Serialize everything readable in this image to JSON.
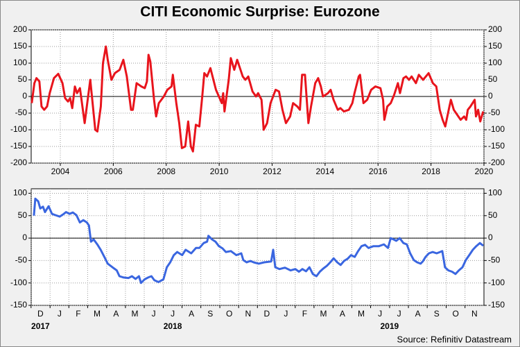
{
  "chart_data": [
    {
      "type": "line",
      "title": "CITI Economic Surprise: Eurozone",
      "xlim": [
        2002.9,
        2020
      ],
      "xticks": [
        2004,
        2006,
        2008,
        2010,
        2012,
        2014,
        2016,
        2018,
        2020
      ],
      "ylim": [
        -200,
        200
      ],
      "yticks": [
        -200,
        -150,
        -100,
        -50,
        0,
        50,
        100,
        150,
        200
      ],
      "grid": true,
      "x": [
        2002.92,
        2003.02,
        2003.1,
        2003.21,
        2003.29,
        2003.39,
        2003.5,
        2003.6,
        2003.76,
        2003.92,
        2004.08,
        2004.18,
        2004.29,
        2004.37,
        2004.45,
        2004.55,
        2004.63,
        2004.74,
        2004.92,
        2005.13,
        2005.32,
        2005.4,
        2005.53,
        2005.61,
        2005.72,
        2005.79,
        2005.93,
        2006.06,
        2006.24,
        2006.38,
        2006.51,
        2006.67,
        2006.74,
        2006.88,
        2007.06,
        2007.19,
        2007.27,
        2007.33,
        2007.4,
        2007.54,
        2007.62,
        2007.72,
        2007.91,
        2008.04,
        2008.2,
        2008.25,
        2008.38,
        2008.49,
        2008.59,
        2008.72,
        2008.83,
        2008.93,
        2009.01,
        2009.12,
        2009.25,
        2009.36,
        2009.44,
        2009.54,
        2009.67,
        2009.88,
        2010.1,
        2010.15,
        2010.2,
        2010.36,
        2010.44,
        2010.57,
        2010.68,
        2010.89,
        2010.99,
        2011.1,
        2011.26,
        2011.39,
        2011.47,
        2011.6,
        2011.68,
        2011.81,
        2011.94,
        2012.13,
        2012.26,
        2012.39,
        2012.52,
        2012.68,
        2012.79,
        2012.95,
        2013.05,
        2013.13,
        2013.24,
        2013.37,
        2013.47,
        2013.63,
        2013.74,
        2013.84,
        2013.92,
        2014.11,
        2014.21,
        2014.32,
        2014.48,
        2014.58,
        2014.71,
        2014.9,
        2015.03,
        2015.11,
        2015.27,
        2015.32,
        2015.45,
        2015.59,
        2015.74,
        2015.9,
        2016.09,
        2016.19,
        2016.24,
        2016.35,
        2016.48,
        2016.61,
        2016.75,
        2016.83,
        2016.96,
        2017.06,
        2017.17,
        2017.27,
        2017.43,
        2017.54,
        2017.7,
        2017.91,
        2018.07,
        2018.2,
        2018.33,
        2018.44,
        2018.54,
        2018.67,
        2018.75,
        2018.86,
        2018.99,
        2019.12,
        2019.25,
        2019.33,
        2019.39,
        2019.49,
        2019.65,
        2019.7,
        2019.78,
        2019.86,
        2019.97
      ],
      "series": [
        {
          "color": "#e8141c",
          "values": [
            -20,
            40,
            55,
            45,
            -30,
            -40,
            -30,
            10,
            55,
            68,
            40,
            -5,
            -15,
            -5,
            -35,
            30,
            10,
            25,
            -80,
            50,
            -100,
            -105,
            -30,
            100,
            150,
            110,
            50,
            70,
            80,
            110,
            60,
            -40,
            -40,
            40,
            30,
            25,
            45,
            125,
            105,
            -10,
            -60,
            -20,
            0,
            20,
            30,
            65,
            -20,
            -80,
            -155,
            -150,
            -75,
            -150,
            -165,
            -85,
            -90,
            0,
            70,
            60,
            85,
            20,
            -20,
            10,
            -45,
            50,
            115,
            80,
            110,
            60,
            50,
            60,
            15,
            0,
            10,
            -10,
            -100,
            -80,
            -20,
            20,
            15,
            -40,
            -80,
            -60,
            -20,
            -30,
            -40,
            65,
            65,
            -80,
            -30,
            40,
            55,
            30,
            0,
            10,
            20,
            -10,
            -40,
            -35,
            -45,
            -40,
            -20,
            10,
            60,
            65,
            -20,
            -10,
            20,
            30,
            25,
            -10,
            -70,
            -30,
            -20,
            5,
            40,
            10,
            55,
            60,
            50,
            60,
            40,
            65,
            50,
            70,
            40,
            30,
            -40,
            -70,
            -90,
            -40,
            -10,
            -40,
            -55,
            -70,
            -60,
            -70,
            -40,
            -30,
            -10,
            -60,
            -40,
            -75,
            -45
          ]
        }
      ]
    },
    {
      "type": "line",
      "xlim": [
        2017.917,
        2019.917
      ],
      "xticks": [
        {
          "value": 2017.958,
          "label": "D"
        },
        {
          "value": 2018.042,
          "label": "J"
        },
        {
          "value": 2018.125,
          "label": "F"
        },
        {
          "value": 2018.208,
          "label": "M"
        },
        {
          "value": 2018.292,
          "label": "A"
        },
        {
          "value": 2018.375,
          "label": "M"
        },
        {
          "value": 2018.458,
          "label": "J"
        },
        {
          "value": 2018.542,
          "label": "J"
        },
        {
          "value": 2018.625,
          "label": "A"
        },
        {
          "value": 2018.708,
          "label": "S"
        },
        {
          "value": 2018.792,
          "label": "O"
        },
        {
          "value": 2018.875,
          "label": "N"
        },
        {
          "value": 2018.958,
          "label": "D"
        },
        {
          "value": 2019.042,
          "label": "J"
        },
        {
          "value": 2019.125,
          "label": "F"
        },
        {
          "value": 2019.208,
          "label": "M"
        },
        {
          "value": 2019.292,
          "label": "A"
        },
        {
          "value": 2019.375,
          "label": "M"
        },
        {
          "value": 2019.458,
          "label": "J"
        },
        {
          "value": 2019.542,
          "label": "J"
        },
        {
          "value": 2019.625,
          "label": "A"
        },
        {
          "value": 2019.708,
          "label": "S"
        },
        {
          "value": 2019.792,
          "label": "O"
        },
        {
          "value": 2019.875,
          "label": "N"
        }
      ],
      "year_ticks": [
        {
          "value": 2017.958,
          "label": "2017"
        },
        {
          "value": 2018.542,
          "label": "2018"
        },
        {
          "value": 2019.5,
          "label": "2019"
        }
      ],
      "ylim": [
        -150,
        110
      ],
      "yticks": [
        -150,
        -100,
        -50,
        0,
        50,
        100
      ],
      "grid": true,
      "x": [
        2017.929,
        2017.935,
        2017.948,
        2017.957,
        2017.969,
        2017.978,
        2017.994,
        2018.009,
        2018.025,
        2018.043,
        2018.061,
        2018.071,
        2018.086,
        2018.101,
        2018.117,
        2018.132,
        2018.147,
        2018.163,
        2018.172,
        2018.181,
        2018.193,
        2018.209,
        2018.224,
        2018.24,
        2018.255,
        2018.276,
        2018.295,
        2018.307,
        2018.326,
        2018.347,
        2018.362,
        2018.378,
        2018.393,
        2018.402,
        2018.418,
        2018.433,
        2018.448,
        2018.461,
        2018.479,
        2018.501,
        2018.516,
        2018.531,
        2018.547,
        2018.562,
        2018.584,
        2018.599,
        2018.624,
        2018.645,
        2018.66,
        2018.679,
        2018.694,
        2018.7,
        2018.716,
        2018.731,
        2018.746,
        2018.762,
        2018.777,
        2018.799,
        2018.823,
        2018.845,
        2018.854,
        2018.869,
        2018.885,
        2018.9,
        2018.922,
        2018.946,
        2018.977,
        2018.986,
        2018.995,
        2019.014,
        2019.038,
        2019.063,
        2019.084,
        2019.1,
        2019.115,
        2019.131,
        2019.146,
        2019.161,
        2019.177,
        2019.192,
        2019.207,
        2019.223,
        2019.238,
        2019.253,
        2019.269,
        2019.284,
        2019.299,
        2019.315,
        2019.33,
        2019.346,
        2019.361,
        2019.376,
        2019.392,
        2019.407,
        2019.429,
        2019.453,
        2019.475,
        2019.493,
        2019.505,
        2019.518,
        2019.53,
        2019.545,
        2019.561,
        2019.576,
        2019.591,
        2019.607,
        2019.622,
        2019.637,
        2019.647,
        2019.659,
        2019.674,
        2019.69,
        2019.708,
        2019.723,
        2019.733,
        2019.745,
        2019.76,
        2019.776,
        2019.791,
        2019.806,
        2019.822,
        2019.837,
        2019.852,
        2019.868,
        2019.883,
        2019.899,
        2019.914
      ],
      "series": [
        {
          "color": "#3a66e0",
          "values": [
            50,
            88,
            82,
            66,
            70,
            58,
            71,
            54,
            51,
            48,
            54,
            58,
            54,
            57,
            51,
            35,
            40,
            35,
            28,
            -8,
            -3,
            -14,
            -26,
            -42,
            -57,
            -65,
            -72,
            -85,
            -88,
            -89,
            -85,
            -91,
            -85,
            -100,
            -92,
            -88,
            -85,
            -94,
            -98,
            -92,
            -65,
            -54,
            -38,
            -31,
            -38,
            -26,
            -34,
            -22,
            -22,
            -11,
            -8,
            5,
            -3,
            -8,
            -18,
            -23,
            -31,
            -29,
            -38,
            -34,
            -49,
            -54,
            -51,
            -54,
            -57,
            -54,
            -52,
            -26,
            -65,
            -69,
            -66,
            -72,
            -69,
            -75,
            -69,
            -74,
            -65,
            -80,
            -85,
            -75,
            -68,
            -62,
            -54,
            -45,
            -54,
            -60,
            -51,
            -46,
            -38,
            -42,
            -29,
            -18,
            -15,
            -22,
            -18,
            -18,
            -14,
            -22,
            0,
            -3,
            -6,
            0,
            -11,
            -14,
            -34,
            -49,
            -54,
            -57,
            -52,
            -42,
            -34,
            -31,
            -34,
            -31,
            -29,
            -65,
            -72,
            -75,
            -80,
            -72,
            -65,
            -49,
            -38,
            -26,
            -18,
            -11,
            -17
          ]
        }
      ],
      "source": "Source: Refinitiv Datastream"
    }
  ]
}
